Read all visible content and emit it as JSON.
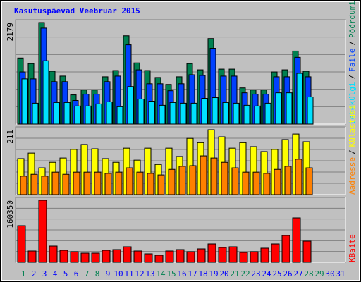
{
  "title": "Kasutuspäevad Veebruar 2015",
  "separator": "/",
  "chart_data": [
    {
      "type": "bar",
      "ylim": [
        0,
        2179
      ],
      "yticks": [
        2179
      ],
      "grid": true,
      "series": [
        {
          "name": "Pöördumisi",
          "color": "#008050",
          "values": [
            1418,
            1298,
            2179,
            1134,
            1030,
            627,
            731,
            731,
            1015,
            1149,
            1895,
            1313,
            1149,
            1000,
            851,
            1015,
            1298,
            1164,
            1835,
            1179,
            1179,
            776,
            731,
            731,
            1119,
            1164,
            1567,
            1134,
            null,
            null,
            null
          ]
        },
        {
          "name": "Faile",
          "color": "#0040ff",
          "values": [
            1119,
            970,
            2059,
            910,
            910,
            507,
            642,
            642,
            910,
            1030,
            1701,
            1164,
            865,
            865,
            716,
            865,
            1059,
            1044,
            1626,
            1030,
            1030,
            671,
            642,
            642,
            1015,
            1015,
            1432,
            1015,
            null,
            null,
            null
          ]
        },
        {
          "name": "Lehekülgi",
          "color": "#00e0ff",
          "values": [
            970,
            448,
            1358,
            463,
            463,
            388,
            388,
            433,
            477,
            373,
            806,
            537,
            492,
            403,
            463,
            448,
            448,
            552,
            567,
            463,
            448,
            403,
            388,
            448,
            671,
            671,
            1089,
            582,
            null,
            null,
            null
          ]
        }
      ]
    },
    {
      "type": "bar",
      "ylim": [
        0,
        211
      ],
      "yticks": [
        211
      ],
      "grid": true,
      "series": [
        {
          "name": "Külastusi",
          "color": "#ffff00",
          "values": [
            117,
            135,
            87,
            105,
            119,
            147,
            163,
            149,
            117,
            105,
            151,
            112,
            151,
            98,
            151,
            124,
            183,
            169,
            211,
            188,
            151,
            169,
            156,
            140,
            147,
            179,
            197,
            172,
            null,
            null,
            null
          ]
        },
        {
          "name": "Aadresse",
          "color": "#ff8000",
          "values": [
            60,
            66,
            60,
            73,
            66,
            73,
            73,
            73,
            69,
            73,
            87,
            73,
            69,
            64,
            82,
            92,
            94,
            126,
            119,
            105,
            87,
            73,
            73,
            69,
            82,
            92,
            115,
            87,
            null,
            null,
            null
          ]
        }
      ]
    },
    {
      "type": "bar",
      "ylim": [
        0,
        160350
      ],
      "yticks": [
        160350
      ],
      "grid": true,
      "categories": [
        "1",
        "2",
        "3",
        "4",
        "5",
        "6",
        "7",
        "8",
        "9",
        "10",
        "11",
        "12",
        "13",
        "14",
        "15",
        "16",
        "17",
        "18",
        "19",
        "20",
        "21",
        "22",
        "23",
        "24",
        "25",
        "26",
        "27",
        "28",
        "29",
        "30",
        "31"
      ],
      "category_colors": [
        "#008050",
        "#0000ff",
        "#0000ff",
        "#0000ff",
        "#0000ff",
        "#0000ff",
        "#008050",
        "#008050",
        "#0000ff",
        "#0000ff",
        "#0000ff",
        "#0000ff",
        "#0000ff",
        "#008050",
        "#008050",
        "#0000ff",
        "#0000ff",
        "#0000ff",
        "#0000ff",
        "#0000ff",
        "#008050",
        "#008050",
        "#0000ff",
        "#0000ff",
        "#0000ff",
        "#0000ff",
        "#0000ff",
        "#008050",
        "#008050",
        "#0000ff",
        "#0000ff"
      ],
      "series": [
        {
          "name": "KBaite",
          "color": "#ff0000",
          "values": [
            94750,
            29150,
            160350,
            41900,
            30970,
            27330,
            23690,
            23690,
            30970,
            32800,
            40080,
            29150,
            21860,
            18220,
            29150,
            32800,
            27330,
            34620,
            47370,
            38260,
            40080,
            25510,
            27330,
            36440,
            47370,
            69240,
            114790,
            54660,
            null,
            null,
            null
          ]
        }
      ]
    }
  ]
}
